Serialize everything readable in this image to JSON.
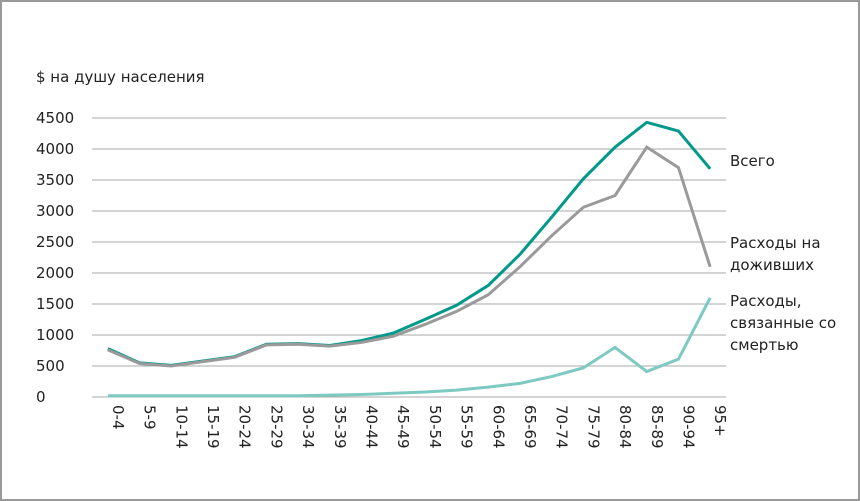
{
  "chart_data": {
    "type": "line",
    "ylabel": "$ на душу населения",
    "categories": [
      "0-4",
      "5-9",
      "10-14",
      "15-19",
      "20-24",
      "25-29",
      "30-34",
      "35-39",
      "40-44",
      "45-49",
      "50-54",
      "55-59",
      "60-64",
      "65-69",
      "70-74",
      "75-79",
      "80-84",
      "85-89",
      "90-94",
      "95+"
    ],
    "series": [
      {
        "name": "Всего",
        "color": "#00998a",
        "values": [
          780,
          550,
          510,
          580,
          650,
          850,
          860,
          830,
          910,
          1030,
          1250,
          1480,
          1800,
          2300,
          2900,
          3520,
          4030,
          4430,
          4290,
          3680
        ]
      },
      {
        "name": "Расходы на доживших",
        "color": "#9a9a9a",
        "values": [
          760,
          540,
          500,
          570,
          640,
          840,
          850,
          820,
          880,
          980,
          1170,
          1380,
          1650,
          2100,
          2600,
          3060,
          3250,
          4030,
          3700,
          2100
        ]
      },
      {
        "name": "Расходы, связанные со смертью",
        "color": "#7ccac1",
        "values": [
          20,
          20,
          20,
          20,
          20,
          20,
          20,
          30,
          40,
          60,
          80,
          110,
          160,
          220,
          330,
          470,
          800,
          410,
          610,
          1600
        ]
      }
    ],
    "ylim": [
      0,
      4500
    ],
    "yticks": [
      0,
      500,
      1000,
      1500,
      2000,
      2500,
      3000,
      3500,
      4000,
      4500
    ],
    "grid": true
  }
}
